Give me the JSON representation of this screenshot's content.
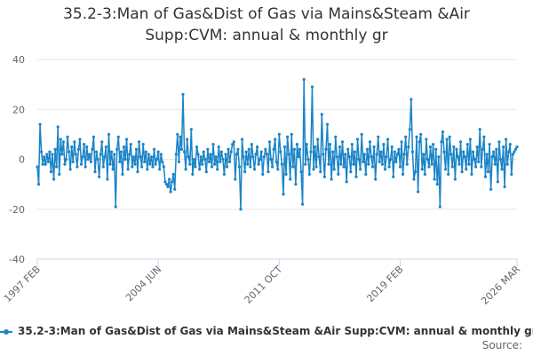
{
  "chart_data": {
    "type": "line",
    "title": "35.2-3:Man of Gas&Dist of Gas via Mains&Steam &Air Supp:CVM: annual & monthly gr",
    "source": "Source:",
    "ylim": [
      -40,
      40
    ],
    "yticks": [
      -40,
      -20,
      0,
      20,
      40
    ],
    "grid": true,
    "categories": [
      "1997 FEB",
      null,
      null,
      null,
      null,
      null,
      null,
      null,
      null,
      null,
      null,
      null,
      null,
      null,
      null,
      null,
      null,
      null,
      null,
      null,
      null,
      null,
      null,
      null,
      null,
      null,
      null,
      null,
      null,
      null,
      null,
      null,
      null,
      null,
      null,
      null,
      null,
      null,
      null,
      null,
      null,
      null,
      null,
      null,
      null,
      null,
      null,
      null,
      null,
      null,
      null,
      null,
      null,
      null,
      null,
      null,
      null,
      null,
      null,
      null,
      null,
      null,
      null,
      null,
      null,
      null,
      null,
      null,
      null,
      null,
      null,
      null,
      null,
      null,
      null,
      null,
      null,
      null,
      null,
      null,
      null,
      null,
      null,
      null,
      null,
      null,
      null,
      null,
      "2004 JUN",
      null,
      null,
      null,
      null,
      null,
      null,
      null,
      null,
      null,
      null,
      null,
      null,
      null,
      null,
      null,
      null,
      null,
      null,
      null,
      null,
      null,
      null,
      null,
      null,
      null,
      null,
      null,
      null,
      null,
      null,
      null,
      null,
      null,
      null,
      null,
      null,
      null,
      null,
      null,
      null,
      null,
      null,
      null,
      null,
      null,
      null,
      null,
      null,
      null,
      null,
      null,
      null,
      null,
      null,
      null,
      null,
      null,
      null,
      null,
      null,
      null,
      null,
      null,
      null,
      null,
      null,
      null,
      null,
      null,
      null,
      null,
      null,
      null,
      null,
      null,
      null,
      null,
      null,
      null,
      null,
      null,
      null,
      null,
      null,
      null,
      null,
      null,
      "2011 OCT",
      null,
      null,
      null,
      null,
      null,
      null,
      null,
      null,
      null,
      null,
      null,
      null,
      null,
      null,
      null,
      null,
      null,
      null,
      null,
      null,
      null,
      null,
      null,
      null,
      null,
      null,
      null,
      null,
      null,
      null,
      null,
      null,
      null,
      null,
      null,
      null,
      null,
      null,
      null,
      null,
      null,
      null,
      null,
      null,
      null,
      null,
      null,
      null,
      null,
      null,
      null,
      null,
      null,
      null,
      null,
      null,
      null,
      null,
      null,
      null,
      null,
      null,
      null,
      null,
      null,
      null,
      null,
      null,
      null,
      null,
      null,
      null,
      null,
      null,
      null,
      null,
      null,
      null,
      null,
      null,
      null,
      null,
      null,
      null,
      null,
      null,
      null,
      "2019 FEB",
      null,
      null,
      null,
      null,
      null,
      null,
      null,
      null,
      null,
      null,
      null,
      null,
      null,
      null,
      null,
      null,
      null,
      null,
      null,
      null,
      null,
      null,
      null,
      null,
      null,
      null,
      null,
      null,
      null,
      null,
      null,
      null,
      null,
      null,
      null,
      null,
      null,
      null,
      null,
      null,
      null,
      null,
      null,
      null,
      null,
      null,
      null,
      null,
      null,
      null,
      null,
      null,
      null,
      null,
      null,
      null,
      null,
      null,
      null,
      null,
      null,
      null,
      null,
      null,
      null,
      null,
      null,
      null,
      null,
      null,
      null,
      null,
      null,
      null,
      null,
      null,
      null,
      null,
      null,
      null,
      null,
      null,
      null,
      null,
      "2026 MAR"
    ],
    "series": [
      {
        "name": "35.2-3:Man of Gas&Dist of Gas via Mains&Steam &Air Supp:CVM: annual & monthly gr",
        "color": "#1a84c7",
        "values": [
          -3,
          -10,
          14,
          3,
          -2,
          1,
          -2,
          2,
          -1,
          3,
          -5,
          2,
          -8,
          4,
          -3,
          13,
          -6,
          8,
          2,
          7,
          -2,
          0,
          9,
          3,
          -4,
          5,
          -1,
          7,
          2,
          -3,
          4,
          8,
          -2,
          1,
          6,
          -3,
          5,
          0,
          2,
          -1,
          4,
          9,
          -5,
          3,
          0,
          -7,
          2,
          7,
          -3,
          1,
          5,
          -8,
          10,
          -2,
          3,
          -4,
          2,
          -19,
          4,
          9,
          -1,
          3,
          -6,
          5,
          0,
          8,
          -4,
          2,
          6,
          -3,
          1,
          -2,
          4,
          -5,
          7,
          1,
          -3,
          6,
          -1,
          3,
          -4,
          2,
          -2,
          1,
          -3,
          4,
          -2,
          0,
          3,
          -4,
          2,
          -1,
          -3,
          -9,
          -10,
          -11,
          -8,
          -13,
          -9,
          -6,
          -12,
          2,
          10,
          -1,
          9,
          4,
          26,
          3,
          -4,
          8,
          1,
          -2,
          12,
          -6,
          0,
          -3,
          5,
          2,
          -4,
          1,
          -2,
          3,
          0,
          -5,
          4,
          -1,
          2,
          -3,
          6,
          -2,
          1,
          -4,
          5,
          -1,
          3,
          0,
          -6,
          2,
          -3,
          4,
          -1,
          3,
          6,
          7,
          -8,
          2,
          4,
          -3,
          -20,
          8,
          1,
          -5,
          3,
          -2,
          4,
          -3,
          6,
          1,
          -4,
          2,
          5,
          -2,
          0,
          3,
          -6,
          1,
          4,
          2,
          -5,
          7,
          0,
          -3,
          4,
          8,
          -1,
          -4,
          10,
          3,
          -2,
          -14,
          5,
          -6,
          9,
          2,
          -8,
          10,
          -3,
          4,
          -10,
          6,
          1,
          4,
          -5,
          -18,
          32,
          -2,
          6,
          0,
          -6,
          3,
          29,
          -4,
          5,
          -3,
          8,
          1,
          -5,
          18,
          2,
          -7,
          4,
          14,
          -2,
          6,
          -8,
          3,
          -4,
          9,
          1,
          -6,
          5,
          -2,
          7,
          -3,
          2,
          -9,
          4,
          1,
          -5,
          6,
          -2,
          3,
          -7,
          8,
          0,
          -4,
          10,
          -1,
          2,
          -6,
          4,
          -2,
          7,
          1,
          -3,
          5,
          -8,
          2,
          9,
          -1,
          3,
          -2,
          6,
          -4,
          1,
          8,
          -3,
          0,
          5,
          -7,
          3,
          -1,
          2,
          4,
          -3,
          7,
          -6,
          2,
          9,
          -2,
          5,
          12,
          24,
          3,
          -8,
          -5,
          9,
          -13,
          7,
          10,
          -4,
          2,
          -6,
          8,
          0,
          -3,
          5,
          -2,
          6,
          -8,
          4,
          -10,
          1,
          -19,
          7,
          11,
          3,
          -4,
          8,
          -6,
          9,
          2,
          -3,
          5,
          -8,
          4,
          1,
          -2,
          7,
          -5,
          3,
          1,
          -4,
          6,
          -2,
          8,
          -6,
          3,
          0,
          -3,
          5,
          -1,
          12,
          -3,
          4,
          9,
          -7,
          2,
          -5,
          6,
          -12,
          1,
          3,
          -2,
          4,
          -9,
          7,
          0,
          -4,
          5,
          -11,
          8,
          -2,
          3,
          6,
          -6,
          2,
          3,
          4,
          5
        ]
      }
    ]
  }
}
